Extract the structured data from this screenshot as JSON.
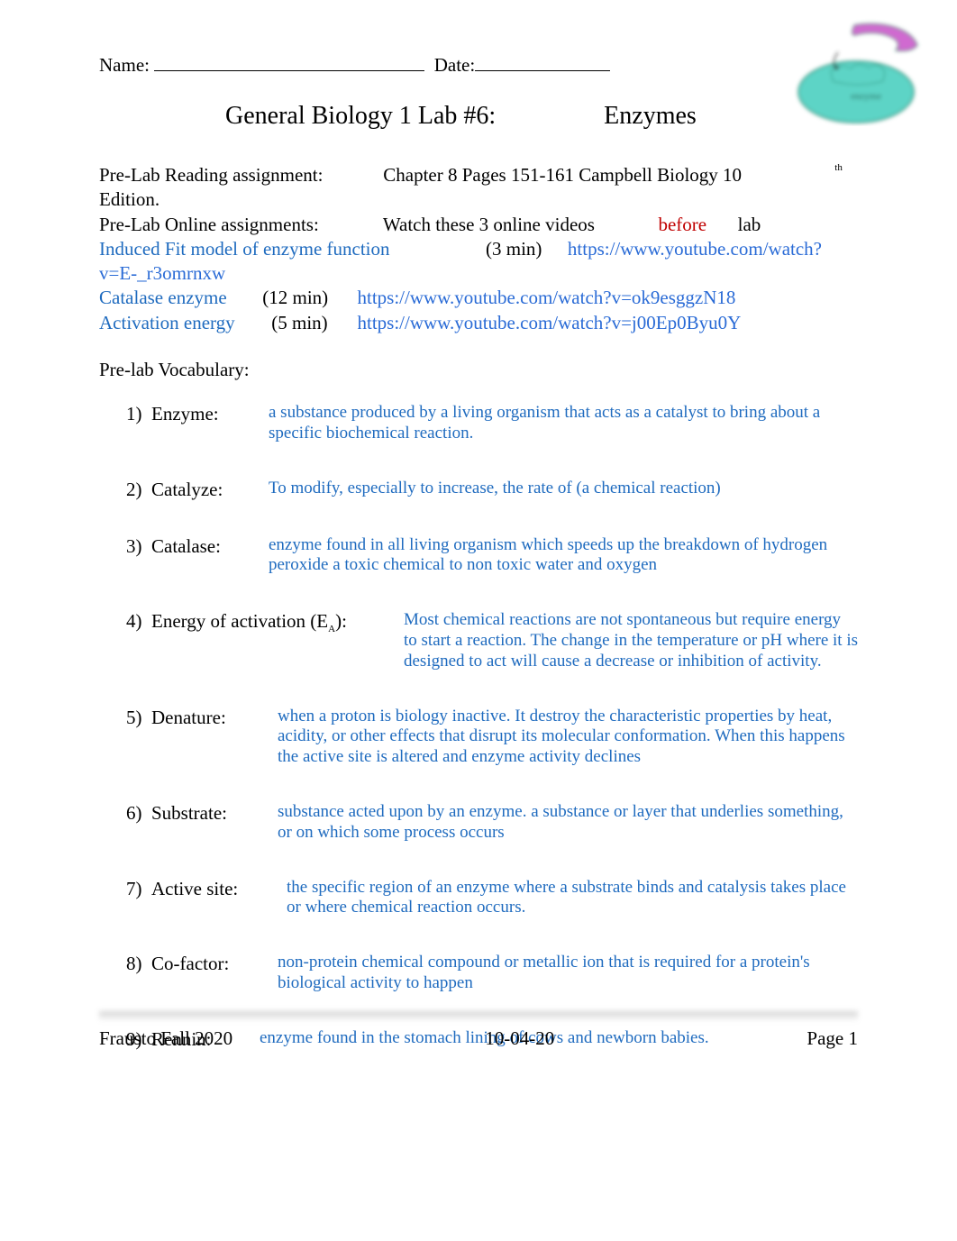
{
  "colors": {
    "text": "#000000",
    "blue": "#1f6bbf",
    "link": "#2a6bd6",
    "red": "#c00000",
    "bg": "#ffffff"
  },
  "header": {
    "name_label": "Name:",
    "date_label": "Date:"
  },
  "title": {
    "left": "General Biology 1 Lab #6:",
    "right": "Enzymes"
  },
  "reading": {
    "label": "Pre-Lab Reading assignment:",
    "text": "Chapter 8 Pages 151-161 Campbell Biology 10",
    "th": "th",
    "edition": "Edition."
  },
  "online": {
    "label": "Pre-Lab Online assignments:",
    "text1": "Watch these 3 online videos",
    "before": "before",
    "lab": "lab",
    "line1_title": "Induced Fit model of enzyme function",
    "line1_time": "(3 min)",
    "line1_url": "https://www.youtube.com/watch?",
    "line1_url2": "v=E-_r3omrnxw",
    "line2_title": "Catalase enzyme",
    "line2_time": "(12 min)",
    "line2_url": "https://www.youtube.com/watch?v=ok9esggzN18",
    "line3_title": "Activation energy",
    "line3_time": "(5 min)",
    "line3_url": "https://www.youtube.com/watch?v=j00Ep0Byu0Y"
  },
  "vocab": {
    "header": "Pre-lab Vocabulary:",
    "items": [
      {
        "num": "1)",
        "term": "Enzyme:",
        "term_width": 110,
        "def": "a substance produced by a living organism that acts as a catalyst to bring about a specific biochemical reaction."
      },
      {
        "num": "2)",
        "term": "Catalyze:",
        "term_width": 110,
        "def": "To modify, especially to increase, the rate of (a chemical reaction)"
      },
      {
        "num": "3)",
        "term": "Catalase:",
        "term_width": 110,
        "def": "enzyme found in all living organism which speeds up the breakdown of hydrogen peroxide a toxic chemical to non toxic water and oxygen"
      },
      {
        "num": "4)",
        "term": "Energy of activation (E",
        "term_suffix_sub": "A",
        "term_suffix": "):",
        "term_width": 260,
        "def": "Most chemical reactions are not spontaneous but require energy to start a reaction. The change in the temperature or pH where it is designed to act will cause a decrease or inhibition of activity."
      },
      {
        "num": "5)",
        "term": "Denature:",
        "term_width": 120,
        "def": "when a proton is biology inactive. It destroy the characteristic properties by heat, acidity, or other effects that disrupt its molecular conformation. When this happens the active site is altered and enzyme activity declines"
      },
      {
        "num": "6)",
        "term": "Substrate:",
        "term_width": 120,
        "def": "substance acted upon by an enzyme. a substance or layer that underlies something, or on which some process occurs"
      },
      {
        "num": "7)",
        "term": " Active site:",
        "term_width": 130,
        "def": "the specific region of an enzyme where a substrate binds and catalysis takes place or where chemical reaction occurs."
      },
      {
        "num": "8)",
        "term": "Co-factor:",
        "term_width": 120,
        "def": "non-protein chemical compound or metallic ion that is required for a protein's biological activity to happen"
      },
      {
        "num": "9)",
        "term": "Rennin:",
        "term_width": 100,
        "def": "enzyme found in the stomach lining of cows and newborn babies."
      }
    ]
  },
  "footer": {
    "left": "Frausto Fall 2020",
    "center": "10-04-20",
    "right": "Page 1"
  },
  "enzyme_graphic": {
    "substrate_fill": "#d06bd0",
    "substrate_stroke": "#2a8a6f",
    "enzyme_fill": "#5dd4c6",
    "enzyme_stroke": "#2a8a6f",
    "label_text": "enzyme",
    "label_color": "#1a5a4a",
    "arrow_color": "#333333"
  }
}
